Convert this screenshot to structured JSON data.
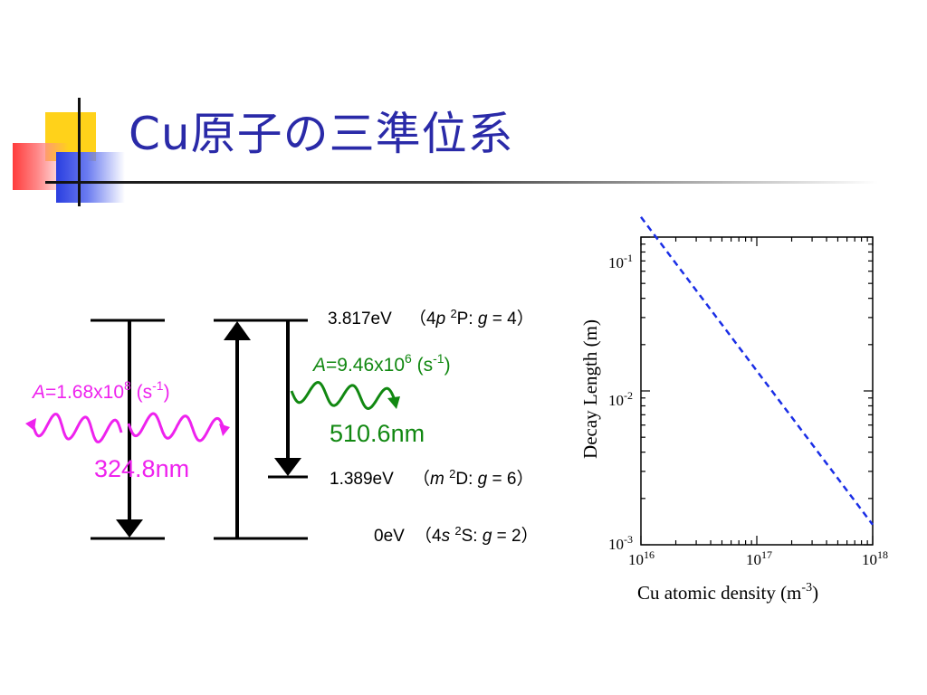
{
  "slide": {
    "title": "Cu原子の三準位系"
  },
  "levels": {
    "upper": {
      "energy": "3.817eV",
      "state": "（4p 2P: g = 4）"
    },
    "middle": {
      "energy": "1.389eV",
      "state": "（m 2D: g = 6）"
    },
    "ground": {
      "energy": "0eV",
      "state": "（4s 2S: g = 2）"
    }
  },
  "transitions": {
    "uv": {
      "rate_label": "A=1.68x108 (s-1)",
      "wavelength": "324.8nm",
      "color": "#ee22ee"
    },
    "green": {
      "rate_label": "A=9.46x106 (s-1)",
      "wavelength": "510.6nm",
      "color": "#118811"
    }
  },
  "chart_data": {
    "type": "line",
    "x_scale": "log",
    "y_scale": "log",
    "xlim": [
      1e+16,
      1e+18
    ],
    "ylim": [
      0.001,
      0.1
    ],
    "x_ticks": [
      "10^16",
      "10^17",
      "10^18"
    ],
    "y_ticks": [
      "10^-1",
      "10^-2",
      "10^-3"
    ],
    "xlabel": "Cu atomic density (m-3)",
    "ylabel": "Decay Length (m)",
    "series": [
      {
        "style": "dashed",
        "color": "#1a2ee6",
        "x": [
          1e+16,
          1e+17,
          1e+18
        ],
        "y": [
          0.135,
          0.0135,
          0.00135
        ]
      }
    ]
  }
}
